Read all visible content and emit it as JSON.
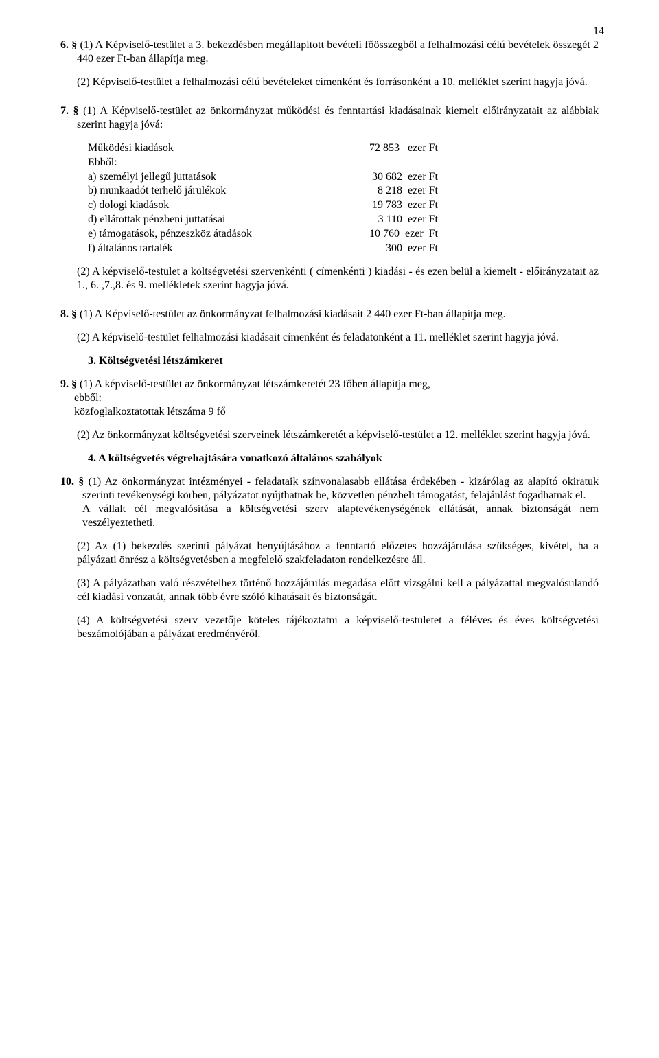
{
  "page_number": "14",
  "p6_1": "6. § (1) A Képviselő-testület a 3.  bekezdésben megállapított bevételi főösszegből a  felhalmozási célú bevételek összegét  2 440   ezer Ft-ban állapítja meg.",
  "p6_2": "(2) Képviselő-testület a felhalmozási célú bevételeket címenként és forrásonként a 10.  melléklet szerint hagyja jóvá.",
  "p7_1": "7. §  (1) A Képviselő-testület az önkormányzat működési és fenntartási kiadásainak kiemelt előirányzatait  az alábbiak szerint hagyja jóvá:",
  "kv": [
    {
      "label": "Működési kiadások",
      "value": "72 853   ezer Ft"
    },
    {
      "label": "Ebből:",
      "value": ""
    },
    {
      "label": "a) személyi jellegű juttatások",
      "value": "30 682  ezer Ft"
    },
    {
      "label": "b) munkaadót terhelő járulékok",
      "value": "8 218  ezer Ft"
    },
    {
      "label": "c) dologi kiadások",
      "value": "19 783  ezer Ft"
    },
    {
      "label": "d) ellátottak pénzbeni juttatásai",
      "value": "3 110  ezer Ft"
    },
    {
      "label": "e) támogatások, pénzeszköz átadások",
      "value": "10 760  ezer  Ft"
    },
    {
      "label": "f) általános tartalék",
      "value": "300  ezer Ft"
    }
  ],
  "p7_2": "(2) A képviselő-testület a  költségvetési szervenkénti ( címenkénti ) kiadási - és ezen belül a kiemelt - előirányzatait az 1., 6. ,7.,8. és 9.  mellékletek szerint hagyja jóvá.",
  "p8_1": "8. § (1) A Képviselő-testület az önkormányzat  felhalmozási kiadásait  2 440   ezer Ft-ban állapítja meg.",
  "p8_2": "(2) A képviselő-testület felhalmozási kiadásait címenként és feladatonként a 11. melléklet szerint hagyja jóvá.",
  "h3": "3. Költségvetési létszámkeret",
  "p9_1a": "9. §  (1) A képviselő-testület az önkormányzat létszámkeretét 23 főben állapítja meg,",
  "p9_1b": "ebből:",
  "p9_1c": "közfoglalkoztatottak  létszáma        9 fő",
  "p9_2": "(2) Az önkormányzat költségvetési szerveinek létszámkeretét a képviselő-testület a  12.  melléklet szerint hagyja jóvá.",
  "h4": "4.  A költségvetés végrehajtására vonatkozó általános szabályok",
  "p10_1a": "10. § (1) Az önkormányzat intézményei - feladataik színvonalasabb ellátása érdekében - kizárólag az alapító okiratuk szerinti tevékenységi körben, pályázatot nyújthatnak be, közvetlen pénzbeli támogatást, felajánlást fogadhatnak el.",
  "p10_1b": "A vállalt cél megvalósítása a költségvetési szerv alaptevékenységének ellátását, annak biztonságát nem veszélyeztetheti.",
  "p10_2": "(2) Az (1) bekezdés szerinti pályázat benyújtásához a fenntartó előzetes hozzájárulása szükséges, kivétel, ha a pályázati önrész a költségvetésben a megfelelő szakfeladaton rendelkezésre áll.",
  "p10_3": "(3) A pályázatban való részvételhez történő hozzájárulás megadása előtt vizsgálni kell a pályázattal megvalósulandó cél kiadási vonzatát, annak több évre szóló kihatásait és biztonságát.",
  "p10_4": "(4) A költségvetési szerv vezetője köteles tájékoztatni a képviselő-testületet a féléves és éves költségvetési beszámolójában a pályázat eredményéről."
}
